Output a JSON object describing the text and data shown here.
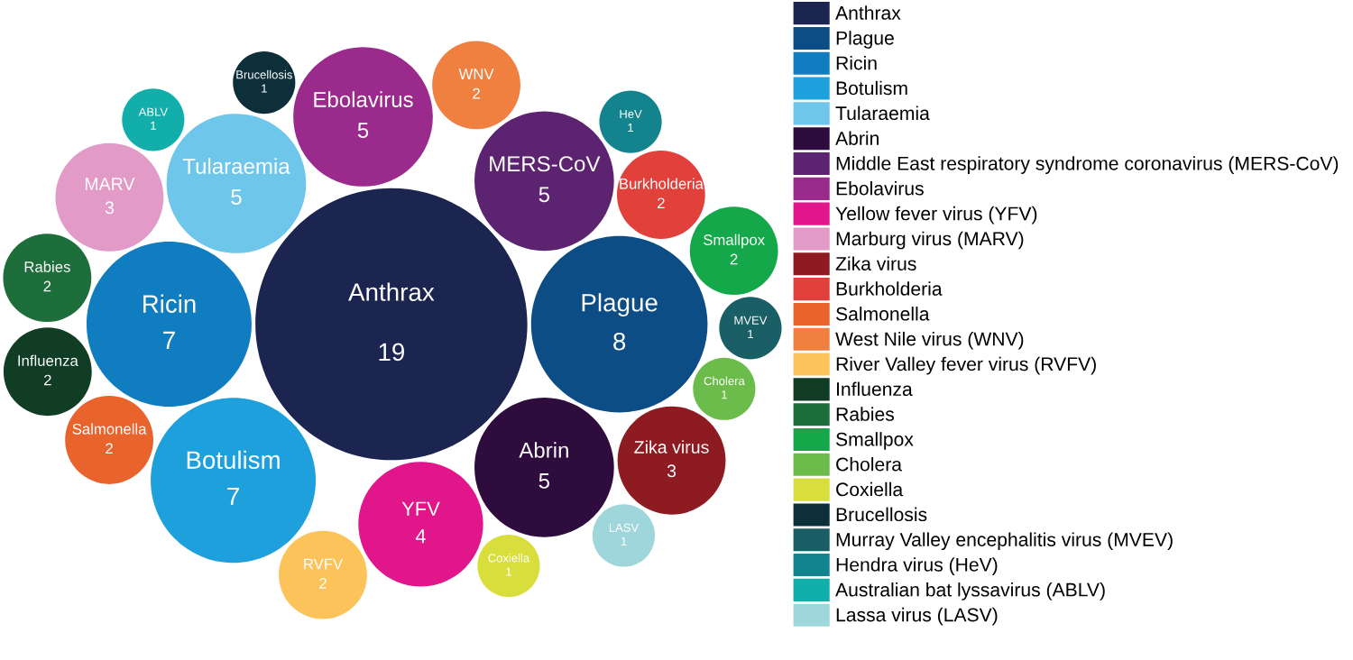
{
  "chart_data": {
    "type": "other",
    "categories": [
      "Anthrax",
      "Plague",
      "Ricin",
      "Botulism",
      "Tularaemia",
      "Abrin",
      "MERS-CoV",
      "Ebolavirus",
      "YFV",
      "MARV",
      "Zika virus",
      "Burkholderia",
      "Salmonella",
      "WNV",
      "RVFV",
      "Influenza",
      "Rabies",
      "Smallpox",
      "Cholera",
      "Coxiella",
      "Brucellosis",
      "MVEV",
      "HeV",
      "ABLV",
      "LASV"
    ],
    "series": [
      {
        "name": "Anthrax",
        "color": "#1b2550",
        "values": [
          19,
          null,
          null,
          null,
          null,
          null,
          null,
          null,
          null,
          null,
          null,
          null,
          null,
          null,
          null,
          null,
          null,
          null,
          null,
          null,
          null,
          null,
          null,
          null,
          null
        ]
      },
      {
        "name": "Plague",
        "color": "#0d4d86",
        "values": [
          null,
          8,
          null,
          null,
          null,
          null,
          null,
          null,
          null,
          null,
          null,
          null,
          null,
          null,
          null,
          null,
          null,
          null,
          null,
          null,
          null,
          null,
          null,
          null,
          null
        ]
      },
      {
        "name": "Ricin",
        "color": "#0f7dc0",
        "values": [
          null,
          null,
          7,
          null,
          null,
          null,
          null,
          null,
          null,
          null,
          null,
          null,
          null,
          null,
          null,
          null,
          null,
          null,
          null,
          null,
          null,
          null,
          null,
          null,
          null
        ]
      },
      {
        "name": "Botulism",
        "color": "#1ea0dc",
        "values": [
          null,
          null,
          null,
          7,
          null,
          null,
          null,
          null,
          null,
          null,
          null,
          null,
          null,
          null,
          null,
          null,
          null,
          null,
          null,
          null,
          null,
          null,
          null,
          null,
          null
        ]
      },
      {
        "name": "Tularaemia",
        "color": "#6ec6ea",
        "values": [
          null,
          null,
          null,
          null,
          5,
          null,
          null,
          null,
          null,
          null,
          null,
          null,
          null,
          null,
          null,
          null,
          null,
          null,
          null,
          null,
          null,
          null,
          null,
          null,
          null
        ]
      },
      {
        "name": "Abrin",
        "color": "#2e0c3e",
        "values": [
          null,
          null,
          null,
          null,
          null,
          5,
          null,
          null,
          null,
          null,
          null,
          null,
          null,
          null,
          null,
          null,
          null,
          null,
          null,
          null,
          null,
          null,
          null,
          null,
          null
        ]
      },
      {
        "name": "Middle East respiratory syndrome coronavirus (MERS-CoV)",
        "color": "#5c2470",
        "values": [
          null,
          null,
          null,
          null,
          null,
          null,
          5,
          null,
          null,
          null,
          null,
          null,
          null,
          null,
          null,
          null,
          null,
          null,
          null,
          null,
          null,
          null,
          null,
          null,
          null
        ]
      },
      {
        "name": "Ebolavirus",
        "color": "#9a2a8c",
        "values": [
          null,
          null,
          null,
          null,
          null,
          null,
          null,
          5,
          null,
          null,
          null,
          null,
          null,
          null,
          null,
          null,
          null,
          null,
          null,
          null,
          null,
          null,
          null,
          null,
          null
        ]
      },
      {
        "name": "Yellow fever virus (YFV)",
        "color": "#e0168a",
        "values": [
          null,
          null,
          null,
          null,
          null,
          null,
          null,
          null,
          4,
          null,
          null,
          null,
          null,
          null,
          null,
          null,
          null,
          null,
          null,
          null,
          null,
          null,
          null,
          null,
          null
        ]
      },
      {
        "name": "Marburg virus (MARV)",
        "color": "#e29ac6",
        "values": [
          null,
          null,
          null,
          null,
          null,
          null,
          null,
          null,
          null,
          3,
          null,
          null,
          null,
          null,
          null,
          null,
          null,
          null,
          null,
          null,
          null,
          null,
          null,
          null,
          null
        ]
      },
      {
        "name": "Zika virus",
        "color": "#8e1b22",
        "values": [
          null,
          null,
          null,
          null,
          null,
          null,
          null,
          null,
          null,
          null,
          3,
          null,
          null,
          null,
          null,
          null,
          null,
          null,
          null,
          null,
          null,
          null,
          null,
          null,
          null
        ]
      },
      {
        "name": "Burkholderia",
        "color": "#e2403a",
        "values": [
          null,
          null,
          null,
          null,
          null,
          null,
          null,
          null,
          null,
          null,
          null,
          2,
          null,
          null,
          null,
          null,
          null,
          null,
          null,
          null,
          null,
          null,
          null,
          null,
          null
        ]
      },
      {
        "name": "Salmonella",
        "color": "#e8642c",
        "values": [
          null,
          null,
          null,
          null,
          null,
          null,
          null,
          null,
          null,
          null,
          null,
          null,
          2,
          null,
          null,
          null,
          null,
          null,
          null,
          null,
          null,
          null,
          null,
          null,
          null
        ]
      },
      {
        "name": "West Nile virus (WNV)",
        "color": "#f08040",
        "values": [
          null,
          null,
          null,
          null,
          null,
          null,
          null,
          null,
          null,
          null,
          null,
          null,
          null,
          2,
          null,
          null,
          null,
          null,
          null,
          null,
          null,
          null,
          null,
          null,
          null
        ]
      },
      {
        "name": "River Valley fever virus (RVFV)",
        "color": "#fcc35a",
        "values": [
          null,
          null,
          null,
          null,
          null,
          null,
          null,
          null,
          null,
          null,
          null,
          null,
          null,
          null,
          2,
          null,
          null,
          null,
          null,
          null,
          null,
          null,
          null,
          null,
          null
        ]
      },
      {
        "name": "Influenza",
        "color": "#113d24",
        "values": [
          null,
          null,
          null,
          null,
          null,
          null,
          null,
          null,
          null,
          null,
          null,
          null,
          null,
          null,
          null,
          2,
          null,
          null,
          null,
          null,
          null,
          null,
          null,
          null,
          null
        ]
      },
      {
        "name": "Rabies",
        "color": "#1d6e3a",
        "values": [
          null,
          null,
          null,
          null,
          null,
          null,
          null,
          null,
          null,
          null,
          null,
          null,
          null,
          null,
          null,
          null,
          2,
          null,
          null,
          null,
          null,
          null,
          null,
          null,
          null
        ]
      },
      {
        "name": "Smallpox",
        "color": "#15a84a",
        "values": [
          null,
          null,
          null,
          null,
          null,
          null,
          null,
          null,
          null,
          null,
          null,
          null,
          null,
          null,
          null,
          null,
          null,
          2,
          null,
          null,
          null,
          null,
          null,
          null,
          null
        ]
      },
      {
        "name": "Cholera",
        "color": "#6cbc4c",
        "values": [
          null,
          null,
          null,
          null,
          null,
          null,
          null,
          null,
          null,
          null,
          null,
          null,
          null,
          null,
          null,
          null,
          null,
          null,
          1,
          null,
          null,
          null,
          null,
          null,
          null
        ]
      },
      {
        "name": "Coxiella",
        "color": "#d8de3c",
        "values": [
          null,
          null,
          null,
          null,
          null,
          null,
          null,
          null,
          null,
          null,
          null,
          null,
          null,
          null,
          null,
          null,
          null,
          null,
          null,
          1,
          null,
          null,
          null,
          null,
          null
        ]
      },
      {
        "name": "Brucellosis",
        "color": "#0c2f3a",
        "values": [
          null,
          null,
          null,
          null,
          null,
          null,
          null,
          null,
          null,
          null,
          null,
          null,
          null,
          null,
          null,
          null,
          null,
          null,
          null,
          null,
          1,
          null,
          null,
          null,
          null
        ]
      },
      {
        "name": "Murray Valley encephalitis virus (MVEV)",
        "color": "#1a5e66",
        "values": [
          null,
          null,
          null,
          null,
          null,
          null,
          null,
          null,
          null,
          null,
          null,
          null,
          null,
          null,
          null,
          null,
          null,
          null,
          null,
          null,
          null,
          1,
          null,
          null,
          null
        ]
      },
      {
        "name": "Hendra virus (HeV)",
        "color": "#13848e",
        "values": [
          null,
          null,
          null,
          null,
          null,
          null,
          null,
          null,
          null,
          null,
          null,
          null,
          null,
          null,
          null,
          null,
          null,
          null,
          null,
          null,
          null,
          null,
          1,
          null,
          null
        ]
      },
      {
        "name": "Australian bat lyssavirus (ABLV)",
        "color": "#12aeaa",
        "values": [
          null,
          null,
          null,
          null,
          null,
          null,
          null,
          null,
          null,
          null,
          null,
          null,
          null,
          null,
          null,
          null,
          null,
          null,
          null,
          null,
          null,
          null,
          null,
          1,
          null
        ]
      },
      {
        "name": "Lassa virus (LASV)",
        "color": "#9ed6dc",
        "values": [
          null,
          null,
          null,
          null,
          null,
          null,
          null,
          null,
          null,
          null,
          null,
          null,
          null,
          null,
          null,
          null,
          null,
          null,
          null,
          null,
          null,
          null,
          null,
          null,
          1
        ]
      }
    ],
    "data_labels": true,
    "legend": "right"
  }
}
